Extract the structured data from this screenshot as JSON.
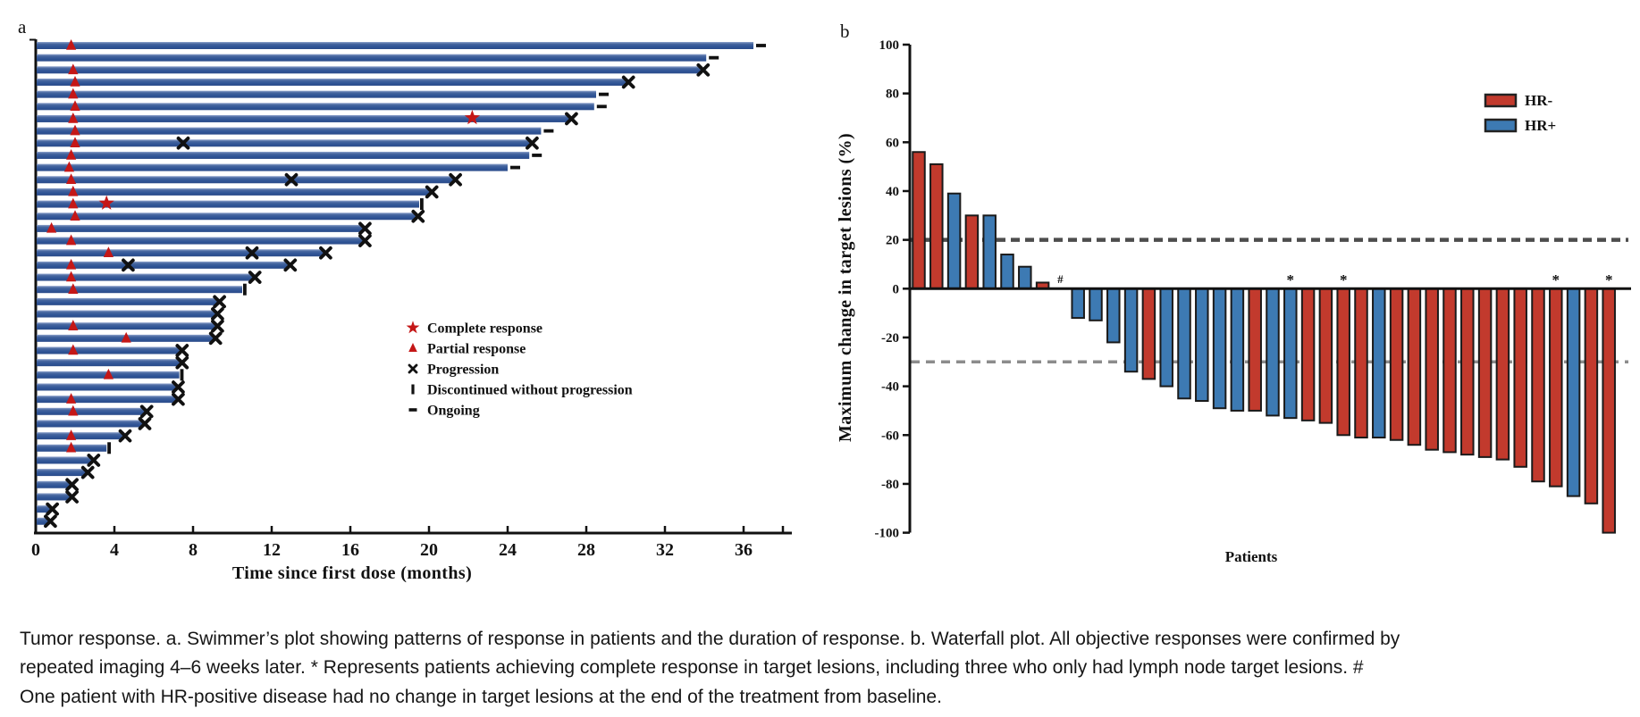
{
  "figure": {
    "panel_a_label": "a",
    "panel_b_label": "b",
    "caption": "Tumor response. a. Swimmer’s plot showing patterns of response in patients and the duration of response. b. Waterfall plot. All objective responses were confirmed by repeated imaging 4–6 weeks later. * Represents patients achieving complete response in target lesions, including three who only had lymph node target lesions. # One patient with HR-positive disease had no change in target lesions at the end of the treatment from baseline."
  },
  "chart_data": [
    {
      "type": "swimmer",
      "panel": "a",
      "title": "",
      "xlabel": "Time since first dose (months)",
      "ylabel": "",
      "x_ticks": [
        0,
        4,
        8,
        12,
        16,
        20,
        24,
        28,
        32,
        36
      ],
      "xlim": [
        0,
        38.5
      ],
      "bar_color": "#2e5597",
      "marker_color_response": "#c41717",
      "marker_color_event": "#111111",
      "legend_position": "center-right",
      "legend": [
        {
          "marker": "star",
          "label": "Complete response"
        },
        {
          "marker": "triangle",
          "label": "Partial response"
        },
        {
          "marker": "x",
          "label": "Progression"
        },
        {
          "marker": "bar",
          "label": "Discontinued without progression"
        },
        {
          "marker": "dash",
          "label": "Ongoing"
        }
      ],
      "patients": [
        {
          "d": 36.5,
          "end": "dash",
          "pr": 1.8
        },
        {
          "d": 34.1,
          "end": "dash"
        },
        {
          "d": 33.9,
          "end": "x",
          "pr": 1.9
        },
        {
          "d": 30.1,
          "end": "x",
          "pr": 2.0
        },
        {
          "d": 28.5,
          "end": "dash",
          "pr": 1.9
        },
        {
          "d": 28.4,
          "end": "dash",
          "pr": 2.0
        },
        {
          "d": 27.2,
          "end": "x",
          "pr": 1.9,
          "cr": 22.2
        },
        {
          "d": 25.7,
          "end": "dash",
          "pr": 2.0
        },
        {
          "d": 25.2,
          "end": "x",
          "pr": 2.0,
          "mx": [
            7.5
          ]
        },
        {
          "d": 25.1,
          "end": "dash",
          "pr": 1.8
        },
        {
          "d": 24.0,
          "end": "dash",
          "pr": 1.7
        },
        {
          "d": 21.3,
          "end": "x",
          "pr": 1.8,
          "mx": [
            13.0
          ]
        },
        {
          "d": 20.1,
          "end": "x",
          "pr": 1.9
        },
        {
          "d": 19.5,
          "end": "bar",
          "pr": 1.9,
          "cr": 3.6
        },
        {
          "d": 19.4,
          "end": "x",
          "pr": 2.0
        },
        {
          "d": 16.7,
          "end": "x",
          "pr": 0.8
        },
        {
          "d": 16.7,
          "end": "x",
          "pr": 1.8
        },
        {
          "d": 14.7,
          "end": "x",
          "pr": 3.7,
          "mx": [
            11.0
          ]
        },
        {
          "d": 12.9,
          "end": "x",
          "pr": 1.8,
          "mx": [
            4.7
          ]
        },
        {
          "d": 11.1,
          "end": "x",
          "pr": 1.8
        },
        {
          "d": 10.5,
          "end": "bar",
          "pr": 1.9
        },
        {
          "d": 9.3,
          "end": "x"
        },
        {
          "d": 9.2,
          "end": "x"
        },
        {
          "d": 9.2,
          "end": "x",
          "pr": 1.9
        },
        {
          "d": 9.1,
          "end": "x",
          "pr": 4.6
        },
        {
          "d": 7.4,
          "end": "x",
          "pr": 1.9
        },
        {
          "d": 7.4,
          "end": "x"
        },
        {
          "d": 7.3,
          "end": "bar",
          "pr": 3.7
        },
        {
          "d": 7.2,
          "end": "x"
        },
        {
          "d": 7.2,
          "end": "x",
          "pr": 1.8
        },
        {
          "d": 5.6,
          "end": "x",
          "pr": 1.9
        },
        {
          "d": 5.5,
          "end": "x"
        },
        {
          "d": 4.5,
          "end": "x",
          "pr": 1.8
        },
        {
          "d": 3.6,
          "end": "bar",
          "pr": 1.8
        },
        {
          "d": 2.9,
          "end": "x"
        },
        {
          "d": 2.6,
          "end": "x"
        },
        {
          "d": 1.8,
          "end": "x"
        },
        {
          "d": 1.8,
          "end": "x"
        },
        {
          "d": 0.8,
          "end": "x"
        },
        {
          "d": 0.7,
          "end": "x"
        }
      ]
    },
    {
      "type": "bar",
      "subtype": "waterfall",
      "panel": "b",
      "title": "",
      "xlabel": "Patients",
      "ylabel": "Maximum change in target lesions (%)",
      "ylim": [
        -100,
        100
      ],
      "y_ticks": [
        100,
        80,
        60,
        40,
        20,
        0,
        -20,
        -40,
        -60,
        -80,
        -100
      ],
      "grid": false,
      "legend_position": "top-right",
      "ref_lines": [
        {
          "y": 20,
          "style": "dashed",
          "color": "#4d4d4d"
        },
        {
          "y": -30,
          "style": "dashed",
          "color": "#8c8c8c"
        }
      ],
      "groups": {
        "HR-": "#c23a2d",
        "HR+": "#3d7ab3"
      },
      "legend": [
        {
          "label": "HR-",
          "color": "#c23a2d"
        },
        {
          "label": "HR+",
          "color": "#3d7ab3"
        }
      ],
      "patients": [
        {
          "v": 56,
          "g": "HR-"
        },
        {
          "v": 51,
          "g": "HR-"
        },
        {
          "v": 39,
          "g": "HR+"
        },
        {
          "v": 30,
          "g": "HR-"
        },
        {
          "v": 30,
          "g": "HR+"
        },
        {
          "v": 14,
          "g": "HR+"
        },
        {
          "v": 9,
          "g": "HR+"
        },
        {
          "v": 2.5,
          "g": "HR-"
        },
        {
          "v": 0,
          "g": "HR+",
          "m": "#"
        },
        {
          "v": -12,
          "g": "HR+"
        },
        {
          "v": -13,
          "g": "HR+"
        },
        {
          "v": -22,
          "g": "HR+"
        },
        {
          "v": -34,
          "g": "HR+"
        },
        {
          "v": -37,
          "g": "HR-"
        },
        {
          "v": -40,
          "g": "HR+"
        },
        {
          "v": -45,
          "g": "HR+"
        },
        {
          "v": -46,
          "g": "HR+"
        },
        {
          "v": -49,
          "g": "HR+"
        },
        {
          "v": -50,
          "g": "HR+"
        },
        {
          "v": -50,
          "g": "HR-"
        },
        {
          "v": -52,
          "g": "HR+"
        },
        {
          "v": -53,
          "g": "HR+",
          "m": "*"
        },
        {
          "v": -54,
          "g": "HR-"
        },
        {
          "v": -55,
          "g": "HR-"
        },
        {
          "v": -60,
          "g": "HR-",
          "m": "*"
        },
        {
          "v": -61,
          "g": "HR-"
        },
        {
          "v": -61,
          "g": "HR+"
        },
        {
          "v": -62,
          "g": "HR-"
        },
        {
          "v": -64,
          "g": "HR-"
        },
        {
          "v": -66,
          "g": "HR-"
        },
        {
          "v": -67,
          "g": "HR-"
        },
        {
          "v": -68,
          "g": "HR-"
        },
        {
          "v": -69,
          "g": "HR-"
        },
        {
          "v": -70,
          "g": "HR-"
        },
        {
          "v": -73,
          "g": "HR-"
        },
        {
          "v": -79,
          "g": "HR-"
        },
        {
          "v": -81,
          "g": "HR-",
          "m": "*"
        },
        {
          "v": -85,
          "g": "HR+"
        },
        {
          "v": -88,
          "g": "HR-"
        },
        {
          "v": -100,
          "g": "HR-",
          "m": "*"
        }
      ]
    }
  ]
}
